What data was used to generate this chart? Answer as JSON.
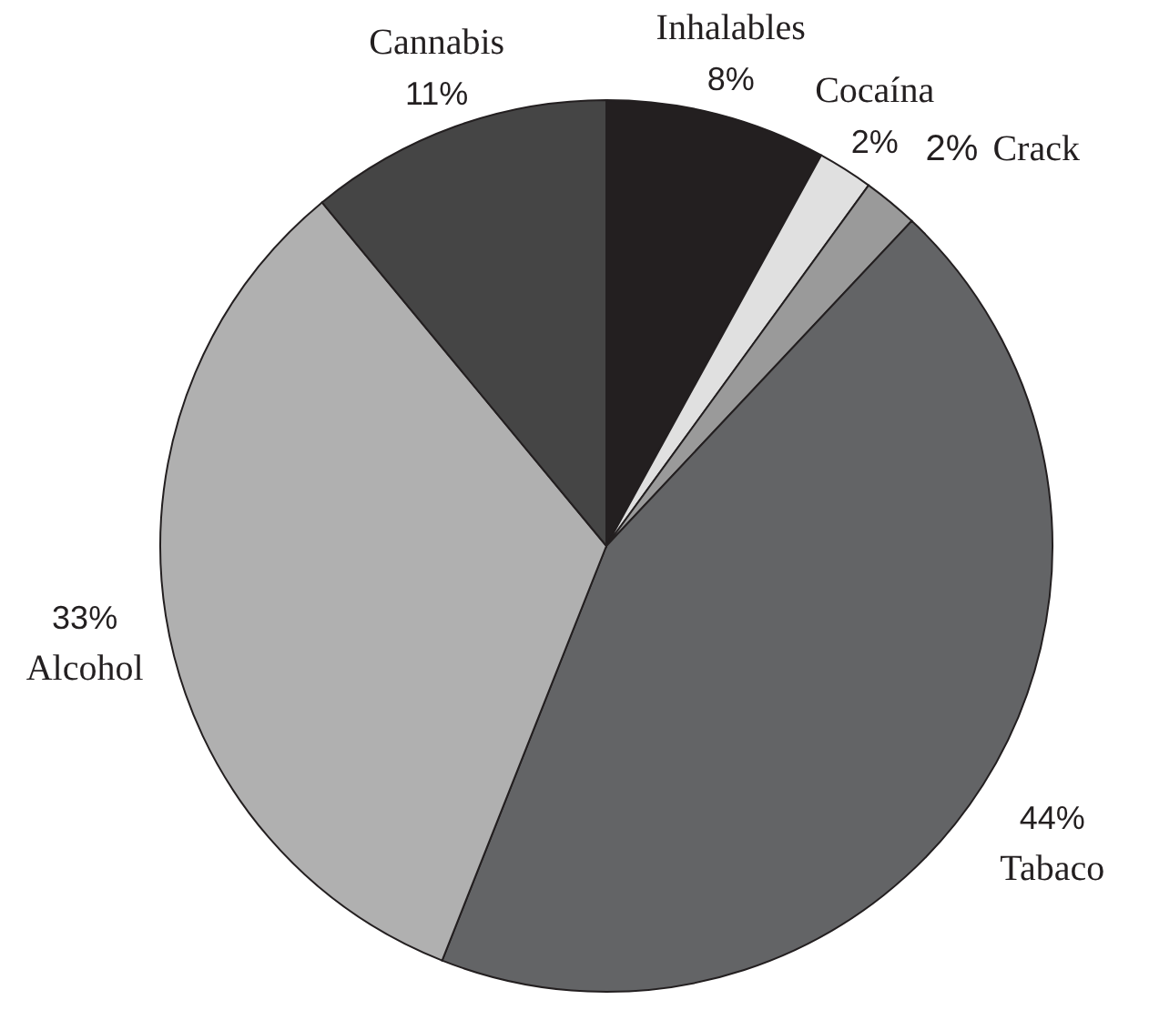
{
  "chart_data": {
    "type": "pie",
    "categories": [
      "Inhalables",
      "Cocaína",
      "Crack",
      "Tabaco",
      "Alcohol",
      "Cannabis"
    ],
    "values": [
      8,
      2,
      2,
      44,
      33,
      11
    ],
    "colors": [
      "#231f20",
      "#e0e0e0",
      "#9a9a9a",
      "#636466",
      "#b0b0b0",
      "#454545"
    ],
    "value_labels": [
      "8%",
      "2%",
      "2%",
      "44%",
      "33%",
      "11%"
    ]
  }
}
